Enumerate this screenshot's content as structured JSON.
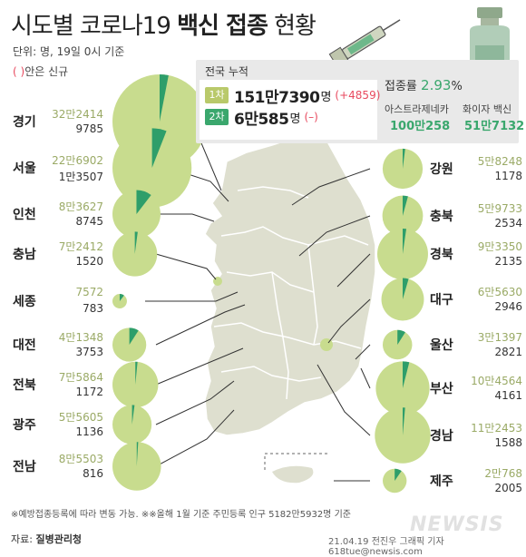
{
  "header": {
    "title_light": "시도별 코로나19",
    "title_bold": "백신 접종",
    "title_end": "현황",
    "unit_note": "단위: 명, 19일 0시 기준",
    "paren_mark": "( )",
    "paren_note": "안은 신규"
  },
  "summary": {
    "title": "전국 누적",
    "dose1_label": "1차",
    "dose1_value": "151만7390",
    "dose1_unit": "명",
    "dose1_new": "(+4859)",
    "dose2_label": "2차",
    "dose2_value": "6만585",
    "dose2_unit": "명",
    "dose2_new": "(–)",
    "rate_label": "접종률",
    "rate_value": "2.93",
    "rate_unit": "%",
    "az_label": "아스트라제네카",
    "az_value": "100만258",
    "pfizer_label": "화이자 백신",
    "pfizer_value": "51만7132"
  },
  "colors": {
    "pie_light": "#c8dc8e",
    "pie_dark": "#2e9e6a",
    "map_fill": "#dedfcf",
    "badge1": "#b9c96a",
    "badge2": "#3aa76d",
    "new_red": "#e84a5f"
  },
  "chart_data": {
    "type": "pie",
    "title": "시도별 코로나19 백신 접종 현황",
    "regions": [
      {
        "name": "경기",
        "total_text": "32만2414",
        "new_text": "9785",
        "total": 322414,
        "new": 9785
      },
      {
        "name": "서울",
        "total_text": "22만6902",
        "new_text": "1만3507",
        "total": 226902,
        "new": 13507
      },
      {
        "name": "인천",
        "total_text": "8만3627",
        "new_text": "8745",
        "total": 83627,
        "new": 8745
      },
      {
        "name": "충남",
        "total_text": "7만2412",
        "new_text": "1520",
        "total": 72412,
        "new": 1520
      },
      {
        "name": "세종",
        "total_text": "7572",
        "new_text": "783",
        "total": 7572,
        "new": 783
      },
      {
        "name": "대전",
        "total_text": "4만1348",
        "new_text": "3753",
        "total": 41348,
        "new": 3753
      },
      {
        "name": "전북",
        "total_text": "7만5864",
        "new_text": "1172",
        "total": 75864,
        "new": 1172
      },
      {
        "name": "광주",
        "total_text": "5만5605",
        "new_text": "1136",
        "total": 55605,
        "new": 1136
      },
      {
        "name": "전남",
        "total_text": "8만5503",
        "new_text": "816",
        "total": 85503,
        "new": 816
      },
      {
        "name": "강원",
        "total_text": "5만8248",
        "new_text": "1178",
        "total": 58248,
        "new": 1178
      },
      {
        "name": "충북",
        "total_text": "5만9733",
        "new_text": "2534",
        "total": 59733,
        "new": 2534
      },
      {
        "name": "경북",
        "total_text": "9만3350",
        "new_text": "2135",
        "total": 93350,
        "new": 2135
      },
      {
        "name": "대구",
        "total_text": "6만5630",
        "new_text": "2946",
        "total": 65630,
        "new": 2946
      },
      {
        "name": "울산",
        "total_text": "3만1397",
        "new_text": "2821",
        "total": 31397,
        "new": 2821
      },
      {
        "name": "부산",
        "total_text": "10만4564",
        "new_text": "4161",
        "total": 104564,
        "new": 4161
      },
      {
        "name": "경남",
        "total_text": "11만2453",
        "new_text": "1588",
        "total": 112453,
        "new": 1588
      },
      {
        "name": "제주",
        "total_text": "2만768",
        "new_text": "2005",
        "total": 20768,
        "new": 2005
      }
    ]
  },
  "footer": {
    "note": "※예방접종등록에 따라 변동 가능. ※※올해 1월 기준 주민등록 인구 5182만5932명 기준",
    "source_label": "자료:",
    "source_value": "질병관리청",
    "credit": "21.04.19 전진우 그래픽 기자 618tue@newsis.com",
    "watermark": "NEWSIS"
  }
}
